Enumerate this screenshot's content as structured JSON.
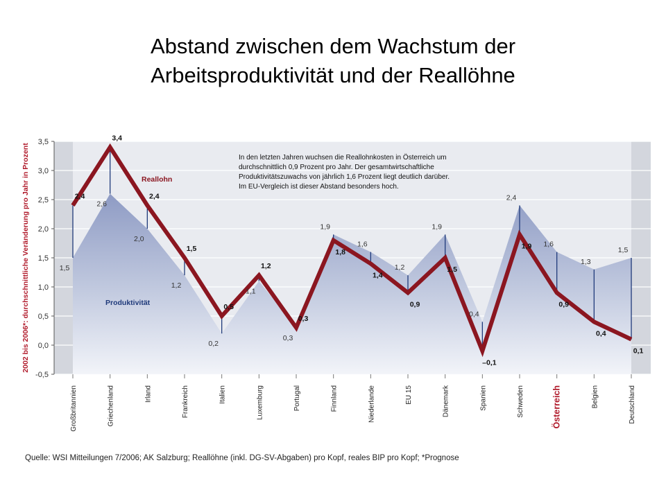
{
  "slide": {
    "title_line1": "Abstand zwischen dem Wachstum der",
    "title_line2": "Arbeitsproduktivität und der  Reallöhne"
  },
  "chart_data": {
    "type": "line",
    "ylabel": "2002 bis 2006*: durchschnittliche Veränderung pro Jahr in Prozent",
    "ylim": [
      -0.5,
      3.5
    ],
    "yticks": [
      "-0,5",
      "0,0",
      "0,5",
      "1,0",
      "1,5",
      "2,0",
      "2,5",
      "3,0",
      "3,5"
    ],
    "grid": true,
    "categories": [
      "Großbritannien",
      "Griechenland",
      "Irland",
      "Frankreich",
      "Italien",
      "Luxemburg",
      "Portugal",
      "Finnland",
      "Niederlande",
      "EU 15",
      "Dänemark",
      "Spanien",
      "Schweden",
      "Österreich",
      "Belgien",
      "Deutschland"
    ],
    "highlight_category": "Österreich",
    "series": [
      {
        "name": "Reallohn",
        "type": "line",
        "color": "#8b1620",
        "values": [
          2.4,
          3.4,
          2.4,
          1.5,
          0.5,
          1.2,
          0.3,
          1.8,
          1.4,
          0.9,
          1.5,
          -0.1,
          1.9,
          0.9,
          0.4,
          0.1
        ],
        "labels": [
          "2,4",
          "3,4",
          "2,4",
          "1,5",
          "0,5",
          "1,2",
          "0,3",
          "1,8",
          "1,4",
          "0,9",
          "1,5",
          "–0,1",
          "1,9",
          "0,9",
          "0,4",
          "0,1"
        ]
      },
      {
        "name": "Produktivität",
        "type": "area",
        "color": "#a9b4d2",
        "values": [
          1.5,
          2.6,
          2.0,
          1.2,
          0.2,
          1.1,
          0.3,
          1.9,
          1.6,
          1.2,
          1.9,
          0.4,
          2.4,
          1.6,
          1.3,
          1.5
        ],
        "labels": [
          "1,5",
          "2,6",
          "2,0",
          "1,2",
          "0,2",
          "1,1",
          "0,3",
          "1,9",
          "1,6",
          "1,2",
          "1,9",
          "0,4",
          "2,4",
          "1,6",
          "1,3",
          "1,5"
        ]
      }
    ],
    "annotation": "In den letzten Jahren wuchsen die Reallohnkosten in Österreich um durchschnittlich 0,9 Prozent pro Jahr. Der gesamtwirtschaftliche Produktivitätszuwachs von jährlich 1,6 Prozent liegt deutlich darüber. Im EU-Vergleich ist dieser Abstand besonders hoch.",
    "annotation_lines": [
      "In den letzten Jahren wuchsen die Reallohnkosten in Österreich um",
      "durchschnittlich 0,9 Prozent pro Jahr. Der gesamtwirtschaftliche",
      "Produktivitätszuwachs von jährlich 1,6 Prozent liegt deutlich darüber.",
      "Im EU-Vergleich ist dieser Abstand besonders hoch."
    ],
    "source": "Quelle: WSI Mitteilungen 7/2006; AK Salzburg; Reallöhne (inkl. DG-SV-Abgaben) pro Kopf, reales BIP pro Kopf; *Prognose"
  },
  "colors": {
    "reallohn": "#8b1620",
    "produktivitaet_fill": "#a9b4d2",
    "panel": "#e9ebf0",
    "axis_label": "#b0192a",
    "gap_line": "#1f3a7a"
  }
}
